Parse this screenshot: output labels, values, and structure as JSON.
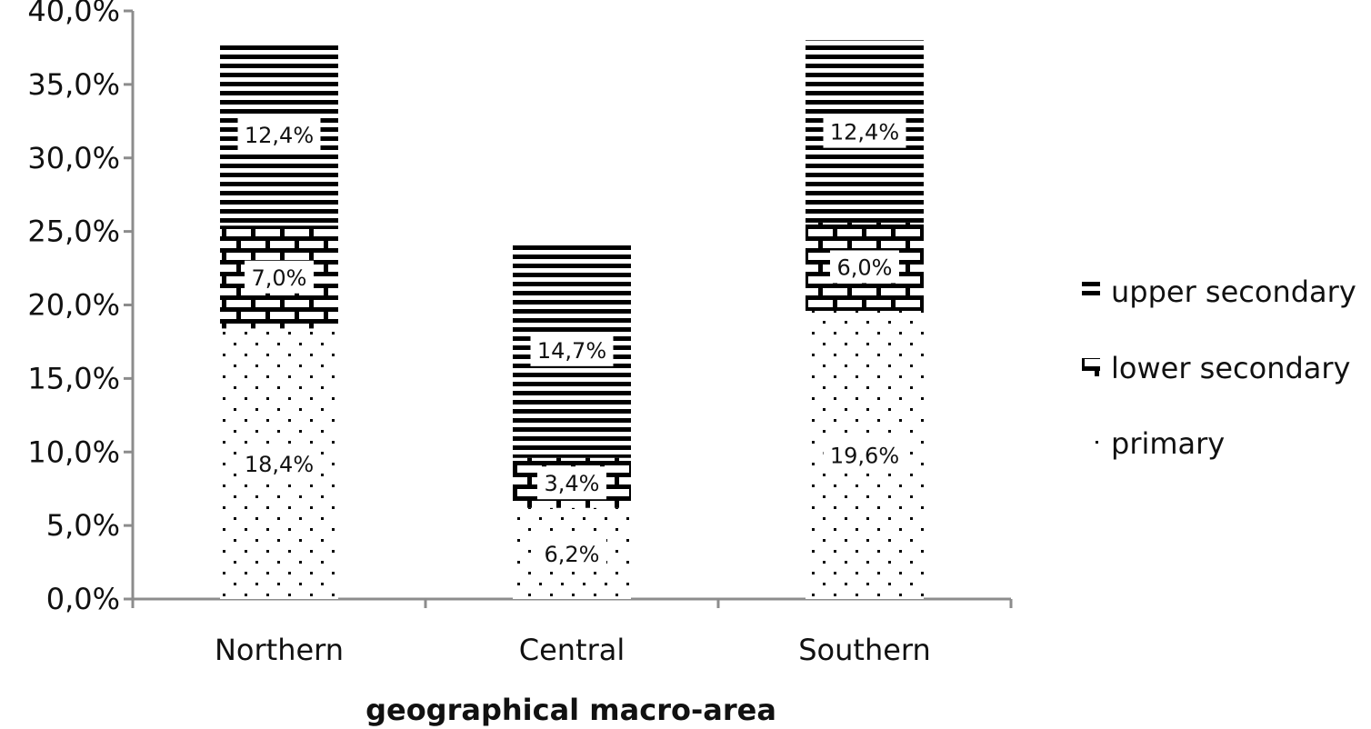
{
  "chart_data": {
    "type": "bar",
    "stacked": true,
    "categories": [
      "Northern",
      "Central",
      "Southern"
    ],
    "series": [
      {
        "name": "primary",
        "values": [
          18.4,
          6.2,
          19.6
        ],
        "labels": [
          "18,4%",
          "6,2%",
          "19,6%"
        ],
        "pattern": "dots"
      },
      {
        "name": "lower secondary",
        "values": [
          7.0,
          3.4,
          6.0
        ],
        "labels": [
          "7,0%",
          "3,4%",
          "6,0%"
        ],
        "pattern": "bricks"
      },
      {
        "name": "upper secondary",
        "values": [
          12.4,
          14.7,
          12.4
        ],
        "labels": [
          "12,4%",
          "14,7%",
          "12,4%"
        ],
        "pattern": "horizontal-lines"
      }
    ],
    "xlabel": "geographical macro-area",
    "ylabel": "",
    "ylim": [
      0,
      40
    ],
    "yticks": [
      "0,0%",
      "5,0%",
      "10,0%",
      "15,0%",
      "20,0%",
      "25,0%",
      "30,0%",
      "35,0%",
      "40,0%"
    ],
    "grid": false,
    "legend_position": "right",
    "legend_order": [
      "upper secondary",
      "lower secondary",
      "primary"
    ]
  }
}
